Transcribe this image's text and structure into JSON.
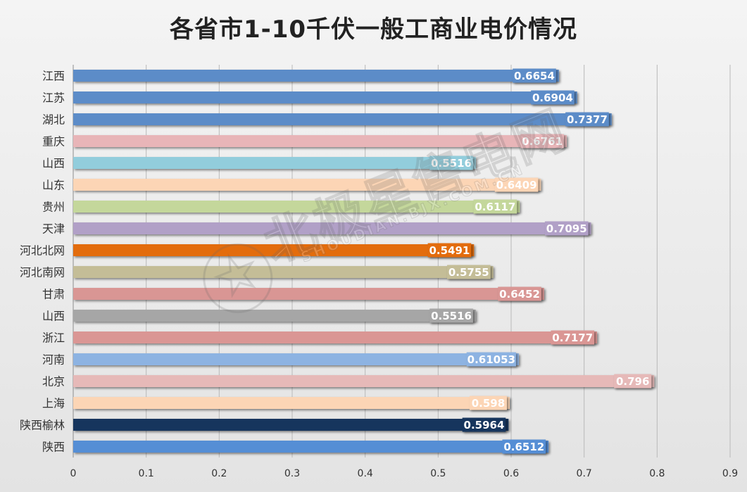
{
  "chart_data": {
    "type": "bar",
    "orientation": "horizontal",
    "title": "各省市1-10千伏一般工商业电价情况",
    "categories": [
      "江西",
      "江苏",
      "湖北",
      "重庆",
      "山西",
      "山东",
      "贵州",
      "天津",
      "河北北网",
      "河北南网",
      "甘肃",
      "山西",
      "浙江",
      "河南",
      "北京",
      "上海",
      "陕西榆林",
      "陕西"
    ],
    "values": [
      0.6654,
      0.6904,
      0.7377,
      0.6761,
      0.5516,
      0.6409,
      0.6117,
      0.7095,
      0.5491,
      0.5755,
      0.6452,
      0.5516,
      0.7177,
      0.61053,
      0.796,
      0.598,
      0.5964,
      0.6512
    ],
    "value_labels": [
      "0.6654",
      "0.6904",
      "0.7377",
      "0.6761",
      "0.5516",
      "0.6409",
      "0.6117",
      "0.7095",
      "0.5491",
      "0.5755",
      "0.6452",
      "0.5516",
      "0.7177",
      "0.61053",
      "0.796",
      "0.598",
      "0.5964",
      "0.6512"
    ],
    "colors": [
      "#5b8cc8",
      "#5b8cc8",
      "#5b8cc8",
      "#e8b5b8",
      "#92cddc",
      "#fcd5b5",
      "#c4d79b",
      "#b1a0c7",
      "#e36c0a",
      "#c4bd97",
      "#d99694",
      "#a6a6a6",
      "#da9694",
      "#8db3e2",
      "#e6b9b8",
      "#fcd5b5",
      "#17365d",
      "#558ed5"
    ],
    "xlim": [
      0,
      0.9
    ],
    "xticks": [
      "0",
      "0.1",
      "0.2",
      "0.3",
      "0.4",
      "0.5",
      "0.6",
      "0.7",
      "0.8",
      "0.9"
    ],
    "grid": true,
    "legend": "none"
  },
  "watermark": {
    "main": "北极星售电网",
    "sub": "SHOUDIAN.BJX.COM.CN"
  }
}
